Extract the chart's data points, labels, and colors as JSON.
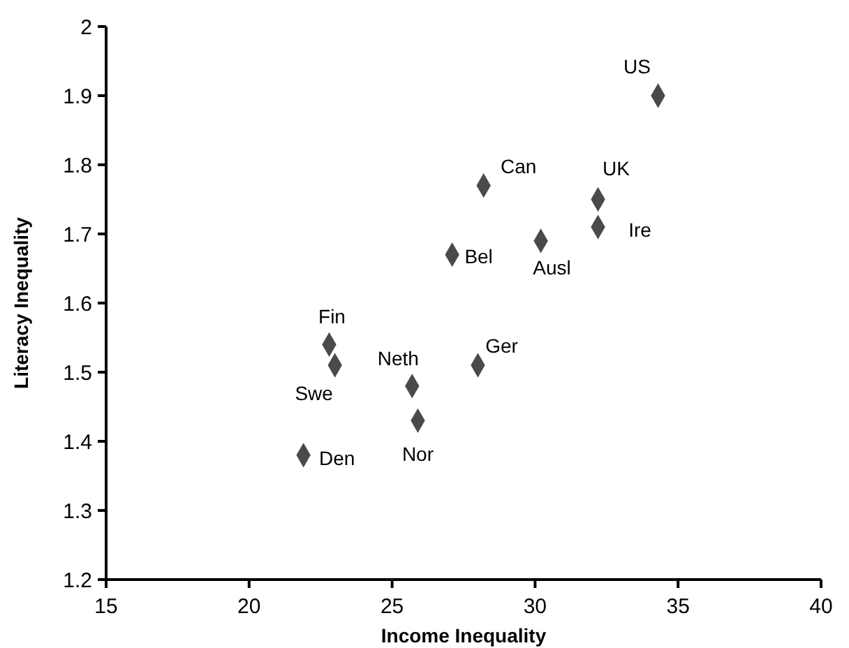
{
  "chart_data": {
    "type": "scatter",
    "xlabel": "Income Inequality",
    "ylabel": "Literacy Inequality",
    "x": [
      22.8,
      23.0,
      21.9,
      25.7,
      25.9,
      28.0,
      27.1,
      28.2,
      30.2,
      32.2,
      32.2,
      34.3
    ],
    "series": [
      {
        "color": "#4a4a4a",
        "values": [
          1.54,
          1.51,
          1.38,
          1.48,
          1.43,
          1.51,
          1.67,
          1.77,
          1.69,
          1.75,
          1.71,
          1.9
        ]
      }
    ],
    "marker": "diamond",
    "xlim": [
      15,
      40
    ],
    "xticks": [
      15,
      20,
      25,
      30,
      35,
      40
    ],
    "ylim": [
      1.2,
      2
    ],
    "yticks": [
      {
        "value": 1.2,
        "label": "1.2"
      },
      {
        "value": 1.3,
        "label": "1.3"
      },
      {
        "value": 1.4,
        "label": "1.4"
      },
      {
        "value": 1.5,
        "label": "1.5"
      },
      {
        "value": 1.6,
        "label": "1.6"
      },
      {
        "value": 1.7,
        "label": "1.7"
      },
      {
        "value": 1.8,
        "label": "1.8"
      },
      {
        "value": 1.9,
        "label": "1.9"
      },
      {
        "value": 2,
        "label": "2"
      }
    ],
    "annotations": [
      {
        "text": "Fin",
        "x": 22.8,
        "y": 1.54
      },
      {
        "text": "Swe",
        "x": 23.0,
        "y": 1.51
      },
      {
        "text": "Den",
        "x": 21.9,
        "y": 1.38
      },
      {
        "text": "Neth",
        "x": 25.7,
        "y": 1.48
      },
      {
        "text": "Nor",
        "x": 25.9,
        "y": 1.43
      },
      {
        "text": "Ger",
        "x": 28.0,
        "y": 1.51
      },
      {
        "text": "Bel",
        "x": 27.1,
        "y": 1.67
      },
      {
        "text": "Can",
        "x": 28.2,
        "y": 1.77
      },
      {
        "text": "Ausl",
        "x": 30.2,
        "y": 1.69
      },
      {
        "text": "UK",
        "x": 32.2,
        "y": 1.75
      },
      {
        "text": "Ire",
        "x": 32.2,
        "y": 1.71
      },
      {
        "text": "US",
        "x": 34.3,
        "y": 1.9
      }
    ]
  }
}
